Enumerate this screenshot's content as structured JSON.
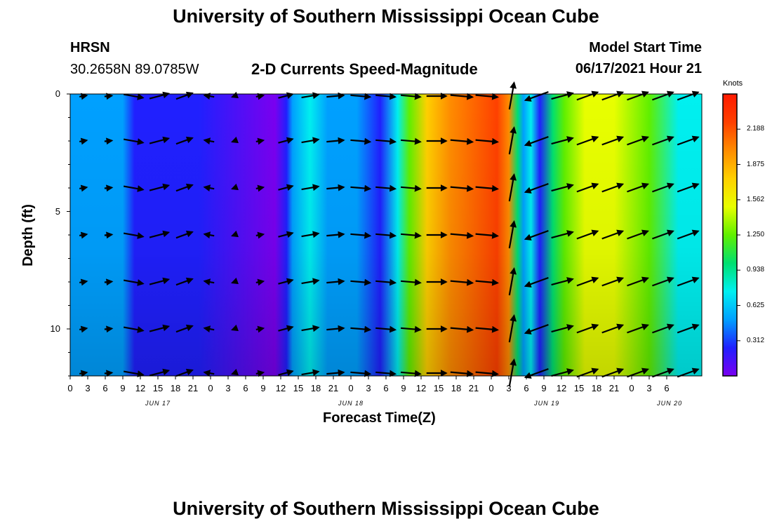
{
  "header": {
    "title": "University of Southern Mississippi Ocean Cube",
    "station": "HRSN",
    "coords": "30.2658N  89.0785W",
    "plot_title": "2-D Currents Speed-Magnitude",
    "model_start_label": "Model Start Time",
    "model_start_value": "06/17/2021 Hour 21"
  },
  "footer": {
    "title": "University of Southern Mississippi Ocean Cube"
  },
  "chart_data": {
    "type": "heatmap",
    "title": "2-D Currents Speed-Magnitude",
    "xlabel": "Forecast Time(Z)",
    "ylabel": "Depth (ft)",
    "x_range_hours": [
      0,
      108
    ],
    "ylim": [
      0,
      12
    ],
    "x_tick_labels": [
      "0",
      "3",
      "6",
      "9",
      "12",
      "15",
      "18",
      "21",
      "0",
      "3",
      "6",
      "9",
      "12",
      "15",
      "18",
      "21",
      "0",
      "3",
      "6",
      "9",
      "12",
      "15",
      "18",
      "21",
      "0",
      "3",
      "6",
      "9",
      "12",
      "15",
      "18",
      "21",
      "0",
      "3",
      "6"
    ],
    "x_date_labels": [
      {
        "label": "JUN 17",
        "hour": 15
      },
      {
        "label": "JUN 18",
        "hour": 48
      },
      {
        "label": "JUN 19",
        "hour": 81.5
      },
      {
        "label": "JUN 20",
        "hour": 102.5
      }
    ],
    "y_tick_labels": [
      "0",
      "5",
      "10"
    ],
    "y_ticks": [
      0,
      5,
      10
    ],
    "colorbar": {
      "unit": "Knots",
      "min": 0,
      "max": 2.5,
      "tick_labels": [
        "2.188",
        "1.875",
        "1.562",
        "1.250",
        "0.938",
        "0.625",
        "0.312"
      ],
      "tick_values": [
        2.188,
        1.875,
        1.562,
        1.25,
        0.938,
        0.625,
        0.312
      ],
      "colors": [
        "#7a00f0",
        "#2020ff",
        "#00a0ff",
        "#00f0f0",
        "#00e070",
        "#60f000",
        "#e8ff00",
        "#ffd000",
        "#ff8c00",
        "#ff4000",
        "#ff1a00"
      ]
    },
    "speed_profile": [
      {
        "hour": 0,
        "speed": 0.55
      },
      {
        "hour": 6,
        "speed": 0.5
      },
      {
        "hour": 9,
        "speed": 0.42
      },
      {
        "hour": 11,
        "speed": 0.28
      },
      {
        "hour": 15,
        "speed": 0.18
      },
      {
        "hour": 22,
        "speed": 0.16
      },
      {
        "hour": 35,
        "speed": 0.08
      },
      {
        "hour": 37,
        "speed": 0.2
      },
      {
        "hour": 38,
        "speed": 0.55
      },
      {
        "hour": 41,
        "speed": 0.75
      },
      {
        "hour": 44,
        "speed": 0.6
      },
      {
        "hour": 49,
        "speed": 0.4
      },
      {
        "hour": 53,
        "speed": 0.25
      },
      {
        "hour": 56,
        "speed": 0.8
      },
      {
        "hour": 58,
        "speed": 1.3
      },
      {
        "hour": 61,
        "speed": 1.8
      },
      {
        "hour": 65,
        "speed": 2.05
      },
      {
        "hour": 73,
        "speed": 2.25
      },
      {
        "hour": 75,
        "speed": 1.95
      },
      {
        "hour": 76.5,
        "speed": 1.1
      },
      {
        "hour": 77.5,
        "speed": 0.45
      },
      {
        "hour": 78.8,
        "speed": 0.8
      },
      {
        "hour": 80.3,
        "speed": 0.25
      },
      {
        "hour": 82.5,
        "speed": 0.9
      },
      {
        "hour": 84.5,
        "speed": 1.3
      },
      {
        "hour": 88,
        "speed": 1.6
      },
      {
        "hour": 93,
        "speed": 1.45
      },
      {
        "hour": 99,
        "speed": 1.15
      },
      {
        "hour": 104,
        "speed": 0.85
      },
      {
        "hour": 108,
        "speed": 0.75
      }
    ],
    "vector_hours": [
      2.2,
      6.5,
      10.8,
      15.2,
      19.5,
      23.8,
      28.1,
      32.4,
      36.8,
      41,
      45.3,
      49.6,
      53.9,
      58.2,
      62.6,
      66.9,
      71.2,
      75.5,
      79.8,
      84.1,
      88.4,
      92.7,
      97,
      101.3,
      105.6
    ],
    "vector_depths": [
      0,
      2,
      4,
      6,
      8,
      10,
      12
    ],
    "vector_dirs_deg": [
      10,
      5,
      -10,
      15,
      20,
      170,
      200,
      10,
      15,
      10,
      5,
      -5,
      -5,
      -5,
      0,
      -5,
      -5,
      80,
      200,
      15,
      20,
      20,
      20,
      20,
      20
    ],
    "vector_lengths": [
      0.15,
      0.15,
      0.4,
      0.4,
      0.35,
      0.2,
      0.1,
      0.15,
      0.3,
      0.35,
      0.35,
      0.4,
      0.4,
      0.4,
      0.4,
      0.45,
      0.45,
      0.55,
      0.5,
      0.45,
      0.45,
      0.45,
      0.45,
      0.45,
      0.45
    ]
  }
}
